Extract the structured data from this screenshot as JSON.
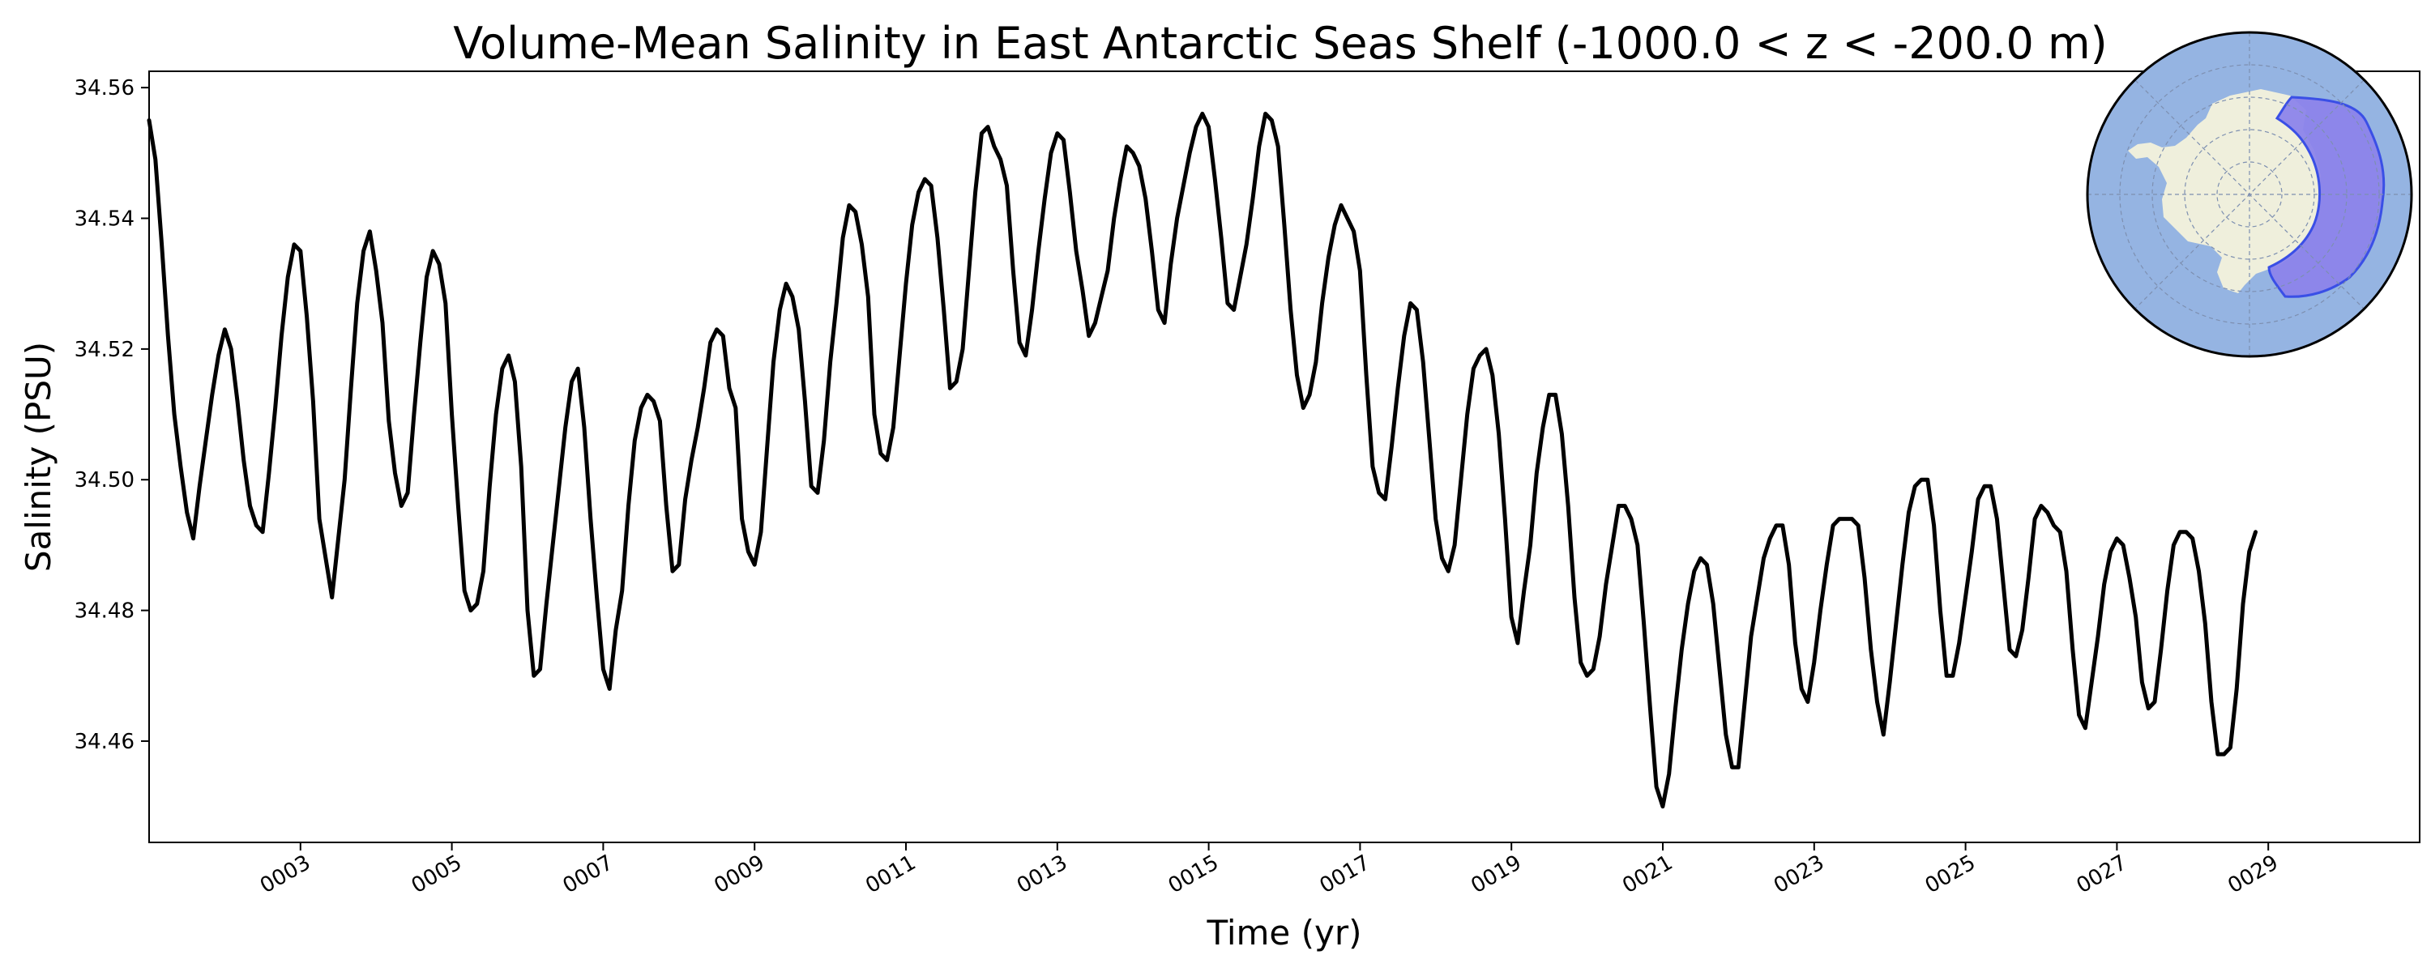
{
  "chart_data": {
    "type": "line",
    "title": "Volume-Mean Salinity in East Antarctic Seas Shelf (-1000.0 < z < -200.0 m)",
    "xlabel": "Time (yr)",
    "ylabel": "Salinity (PSU)",
    "xlim": [
      1.0,
      31.0
    ],
    "ylim": [
      34.4445,
      34.5625
    ],
    "grid": false,
    "line_color": "#000000",
    "x_ticks": [
      3,
      5,
      7,
      9,
      11,
      13,
      15,
      17,
      19,
      21,
      23,
      25,
      27,
      29
    ],
    "x_tick_labels": [
      "0003",
      "0005",
      "0007",
      "0009",
      "0011",
      "0013",
      "0015",
      "0017",
      "0019",
      "0021",
      "0023",
      "0025",
      "0027",
      "0029"
    ],
    "y_ticks": [
      34.46,
      34.48,
      34.5,
      34.52,
      34.54,
      34.56
    ],
    "y_tick_labels": [
      "34.46",
      "34.48",
      "34.50",
      "34.52",
      "34.54",
      "34.56"
    ],
    "series": [
      {
        "name": "Volume-mean salinity",
        "x_start": 1.0,
        "x_step": 0.08333,
        "values": [
          34.555,
          34.549,
          34.536,
          34.522,
          34.51,
          34.502,
          34.495,
          34.491,
          34.499,
          34.506,
          34.513,
          34.519,
          34.523,
          34.52,
          34.512,
          34.503,
          34.496,
          34.493,
          34.492,
          34.501,
          34.511,
          34.522,
          34.531,
          34.536,
          34.535,
          34.525,
          34.512,
          34.494,
          34.488,
          34.482,
          34.491,
          34.5,
          34.514,
          34.527,
          34.535,
          34.538,
          34.532,
          34.524,
          34.509,
          34.501,
          34.496,
          34.498,
          34.51,
          34.521,
          34.531,
          34.535,
          34.533,
          34.527,
          34.51,
          34.496,
          34.483,
          34.48,
          34.481,
          34.486,
          34.499,
          34.51,
          34.517,
          34.519,
          34.515,
          34.502,
          34.48,
          34.47,
          34.471,
          34.481,
          34.49,
          34.499,
          34.508,
          34.515,
          34.517,
          34.508,
          34.494,
          34.482,
          34.471,
          34.468,
          34.477,
          34.483,
          34.496,
          34.506,
          34.511,
          34.513,
          34.512,
          34.509,
          34.496,
          34.486,
          34.487,
          34.497,
          34.503,
          34.508,
          34.514,
          34.521,
          34.523,
          34.522,
          34.514,
          34.511,
          34.494,
          34.489,
          34.487,
          34.492,
          34.505,
          34.518,
          34.526,
          34.53,
          34.528,
          34.523,
          34.512,
          34.499,
          34.498,
          34.506,
          34.518,
          34.527,
          34.537,
          34.542,
          34.541,
          34.536,
          34.528,
          34.51,
          34.504,
          34.503,
          34.508,
          34.519,
          34.53,
          34.539,
          34.544,
          34.546,
          34.545,
          34.537,
          34.526,
          34.514,
          34.515,
          34.52,
          34.532,
          34.544,
          34.553,
          34.554,
          34.551,
          34.549,
          34.545,
          34.532,
          34.521,
          34.519,
          34.526,
          34.535,
          34.543,
          34.55,
          34.553,
          34.552,
          34.544,
          34.535,
          34.529,
          34.522,
          34.524,
          34.528,
          34.532,
          34.54,
          34.546,
          34.551,
          34.55,
          34.548,
          34.543,
          34.535,
          34.526,
          34.524,
          34.533,
          34.54,
          34.545,
          34.55,
          34.554,
          34.556,
          34.554,
          34.546,
          34.537,
          34.527,
          34.526,
          34.531,
          34.536,
          34.543,
          34.551,
          34.556,
          34.555,
          34.551,
          34.539,
          34.526,
          34.516,
          34.511,
          34.513,
          34.518,
          34.527,
          34.534,
          34.539,
          34.542,
          34.54,
          34.538,
          34.532,
          34.516,
          34.502,
          34.498,
          34.497,
          34.505,
          34.514,
          34.522,
          34.527,
          34.526,
          34.518,
          34.506,
          34.494,
          34.488,
          34.486,
          34.49,
          34.5,
          34.51,
          34.517,
          34.519,
          34.52,
          34.516,
          34.507,
          34.494,
          34.479,
          34.475,
          34.483,
          34.49,
          34.501,
          34.508,
          34.513,
          34.513,
          34.507,
          34.496,
          34.482,
          34.472,
          34.47,
          34.471,
          34.476,
          34.484,
          34.49,
          34.496,
          34.496,
          34.494,
          34.49,
          34.478,
          34.465,
          34.453,
          34.45,
          34.455,
          34.465,
          34.474,
          34.481,
          34.486,
          34.488,
          34.487,
          34.481,
          34.471,
          34.461,
          34.456,
          34.456,
          34.466,
          34.476,
          34.482,
          34.488,
          34.491,
          34.493,
          34.493,
          34.487,
          34.475,
          34.468,
          34.466,
          34.472,
          34.48,
          34.487,
          34.493,
          34.494,
          34.494,
          34.494,
          34.493,
          34.485,
          34.474,
          34.466,
          34.461,
          34.469,
          34.478,
          34.487,
          34.495,
          34.499,
          34.5,
          34.5,
          34.493,
          34.48,
          34.47,
          34.47,
          34.475,
          34.482,
          34.489,
          34.497,
          34.499,
          34.499,
          34.494,
          34.484,
          34.474,
          34.473,
          34.477,
          34.485,
          34.494,
          34.496,
          34.495,
          34.493,
          34.492,
          34.486,
          34.474,
          34.464,
          34.462,
          34.469,
          34.476,
          34.484,
          34.489,
          34.491,
          34.49,
          34.485,
          34.479,
          34.469,
          34.465,
          34.466,
          34.474,
          34.483,
          34.49,
          34.492,
          34.492,
          34.491,
          34.486,
          34.478,
          34.466,
          34.458,
          34.458,
          34.459,
          34.468,
          34.481,
          34.489,
          34.492
        ]
      }
    ],
    "inset_map": {
      "type": "south-polar map",
      "ocean_color": "#95b4e2",
      "land_color": "#efefdc",
      "region_color": "#8c84ea",
      "region_outline_color": "#3a4fe6"
    }
  }
}
